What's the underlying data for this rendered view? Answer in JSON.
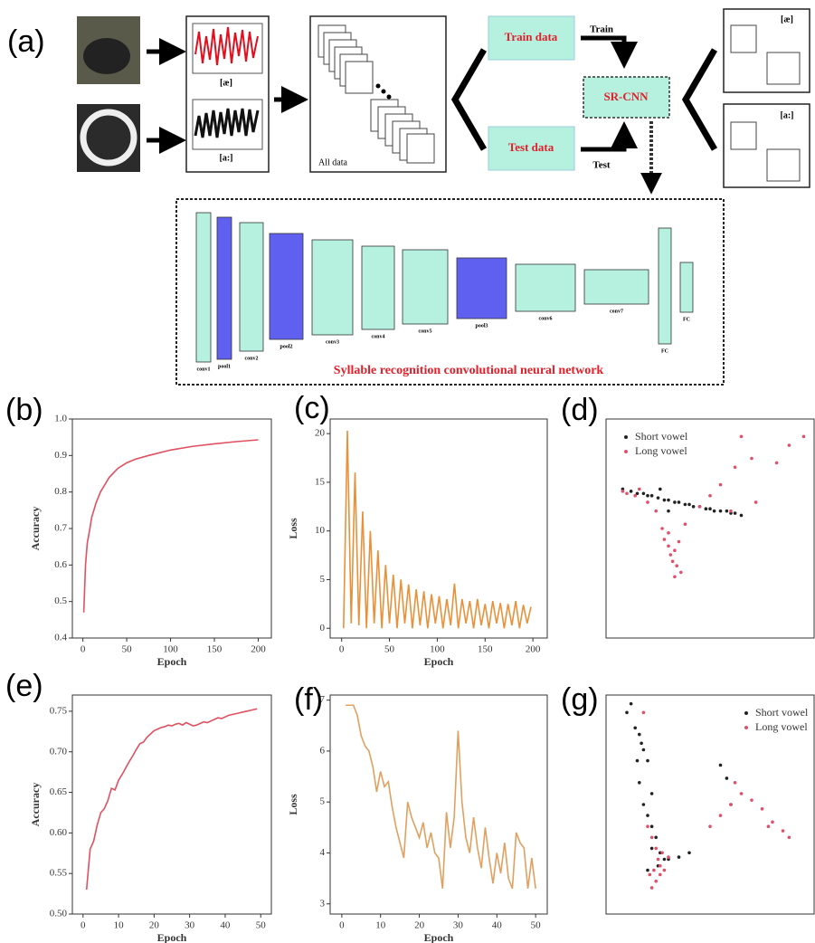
{
  "panel_labels": [
    "(a)",
    "(b)",
    "(c)",
    "(d)",
    "(e)",
    "(f)",
    "(g)"
  ],
  "diagram": {
    "waveforms": [
      "[æ]",
      "[a:]"
    ],
    "all_data": "All data",
    "train_data": "Train data",
    "test_data": "Test data",
    "train": "Train",
    "test": "Test",
    "model": "SR-CNN",
    "outputs": [
      "[æ]",
      "[a:]"
    ],
    "layers": [
      "conv1",
      "pool1",
      "conv2",
      "pool2",
      "conv3",
      "conv4",
      "conv5",
      "pool3",
      "conv6",
      "conv7",
      "FC",
      "FC"
    ],
    "network_title": "Syllable recognition convolutional neural network"
  },
  "chart_data": [
    {
      "type": "line",
      "xlabel": "Epoch",
      "ylabel": "Accuracy",
      "color": "#e05060",
      "x": [
        1,
        3,
        5,
        8,
        10,
        15,
        20,
        25,
        30,
        40,
        50,
        60,
        75,
        100,
        125,
        150,
        175,
        200
      ],
      "values": [
        0.47,
        0.6,
        0.66,
        0.7,
        0.73,
        0.77,
        0.8,
        0.82,
        0.84,
        0.865,
        0.88,
        0.89,
        0.9,
        0.915,
        0.925,
        0.932,
        0.938,
        0.943
      ],
      "xlim": [
        -12,
        215
      ],
      "xticks": [
        0,
        50,
        100,
        150,
        200
      ],
      "ylim": [
        0.4,
        1.0
      ],
      "yticks": [
        0.4,
        0.5,
        0.6,
        0.7,
        0.8,
        0.9,
        {
          "value": 1.0,
          "label": "1.0"
        }
      ]
    },
    {
      "type": "line",
      "xlabel": "Epoch",
      "ylabel": "Loss",
      "color": "#e8913a",
      "x": [
        2,
        6,
        10,
        14,
        18,
        22,
        26,
        30,
        34,
        38,
        42,
        46,
        50,
        54,
        58,
        62,
        66,
        70,
        74,
        78,
        82,
        86,
        90,
        94,
        98,
        102,
        106,
        110,
        114,
        118,
        122,
        126,
        130,
        134,
        138,
        142,
        146,
        150,
        154,
        158,
        162,
        166,
        170,
        174,
        178,
        182,
        186,
        190,
        194,
        198
      ],
      "values": [
        0,
        20.3,
        0.5,
        16,
        0.3,
        12,
        0,
        10,
        0.5,
        8,
        0,
        6.5,
        0.5,
        5.5,
        0,
        5,
        0.5,
        4.5,
        0,
        4,
        0.3,
        3.8,
        0,
        3.5,
        0.5,
        3.3,
        0,
        3,
        0.3,
        4.6,
        0,
        3,
        0.5,
        2.8,
        0,
        3,
        0.3,
        2.5,
        0,
        2.8,
        0.5,
        2.6,
        0,
        2.5,
        0.3,
        2.8,
        0,
        2.4,
        0.5,
        2.2
      ],
      "xlim": [
        -12,
        215
      ],
      "xticks": [
        0,
        50,
        100,
        150,
        200
      ],
      "ylim": [
        -1,
        21.5
      ],
      "yticks": [
        0,
        5,
        10,
        15,
        20
      ]
    },
    {
      "type": "scatter",
      "legend": "upper-left",
      "xlim": [
        0,
        100
      ],
      "ylim": [
        0,
        100
      ],
      "series": [
        {
          "name": "Short vowel",
          "color": "#222222",
          "x": [
            8,
            12,
            15,
            18,
            20,
            22,
            25,
            28,
            30,
            33,
            35,
            38,
            40,
            42,
            45,
            48,
            50,
            52,
            55,
            58,
            60,
            62,
            65,
            26,
            30
          ],
          "values": [
            68,
            67,
            66,
            66,
            65,
            65,
            64,
            63,
            63,
            62,
            62,
            61,
            61,
            60,
            60,
            59,
            59,
            58,
            58,
            58,
            57,
            57,
            56,
            68,
            58
          ]
        },
        {
          "name": "Long vowel",
          "color": "#e0506a",
          "x": [
            8,
            10,
            14,
            16,
            20,
            24,
            27,
            28,
            30,
            31,
            32,
            33,
            34,
            35,
            36,
            30,
            33,
            38,
            45,
            50,
            55,
            60,
            65,
            62,
            70,
            82,
            88,
            72,
            95
          ],
          "values": [
            67,
            66,
            65,
            68,
            62,
            58,
            50,
            45,
            42,
            38,
            35,
            40,
            33,
            44,
            30,
            48,
            28,
            52,
            60,
            65,
            70,
            58,
            92,
            78,
            82,
            80,
            88,
            62,
            92
          ]
        }
      ]
    },
    {
      "type": "line",
      "xlabel": "Epoch",
      "ylabel": "Accuracy",
      "color": "#e05060",
      "x": [
        1,
        2,
        3,
        4,
        5,
        6,
        7,
        8,
        9,
        10,
        11,
        12,
        13,
        14,
        15,
        16,
        17,
        18,
        19,
        20,
        21,
        22,
        23,
        24,
        25,
        26,
        27,
        28,
        29,
        30,
        31,
        32,
        33,
        34,
        35,
        36,
        37,
        38,
        39,
        40,
        41,
        42,
        43,
        44,
        45,
        46,
        47,
        48,
        49
      ],
      "values": [
        0.53,
        0.58,
        0.59,
        0.61,
        0.625,
        0.63,
        0.64,
        0.655,
        0.653,
        0.665,
        0.672,
        0.68,
        0.688,
        0.695,
        0.703,
        0.71,
        0.712,
        0.718,
        0.722,
        0.726,
        0.728,
        0.73,
        0.731,
        0.733,
        0.732,
        0.734,
        0.735,
        0.733,
        0.736,
        0.734,
        0.732,
        0.733,
        0.735,
        0.737,
        0.736,
        0.738,
        0.74,
        0.742,
        0.741,
        0.743,
        0.745,
        0.746,
        0.747,
        0.748,
        0.749,
        0.75,
        0.751,
        0.752,
        0.753
      ],
      "xlim": [
        -3,
        53
      ],
      "xticks": [
        0,
        10,
        20,
        30,
        40,
        50
      ],
      "ylim": [
        0.5,
        0.77
      ],
      "yticks": [
        {
          "value": 0.5,
          "label": "0.50"
        },
        0.55,
        {
          "value": 0.6,
          "label": "0.60"
        },
        0.65,
        {
          "value": 0.7,
          "label": "0.70"
        },
        0.75
      ]
    },
    {
      "type": "line",
      "xlabel": "Epoch",
      "ylabel": "Loss",
      "color": "#e0a060",
      "x": [
        1,
        2,
        3,
        4,
        5,
        6,
        7,
        8,
        9,
        10,
        11,
        12,
        13,
        14,
        15,
        16,
        17,
        18,
        19,
        20,
        21,
        22,
        23,
        24,
        25,
        26,
        27,
        28,
        29,
        30,
        31,
        32,
        33,
        34,
        35,
        36,
        37,
        38,
        39,
        40,
        41,
        42,
        43,
        44,
        45,
        46,
        47,
        48,
        49,
        50
      ],
      "values": [
        6.9,
        6.9,
        6.9,
        6.7,
        6.3,
        6.1,
        6.0,
        5.7,
        5.2,
        5.6,
        5.3,
        5.4,
        4.9,
        4.5,
        4.2,
        3.9,
        5.0,
        4.7,
        4.5,
        4.3,
        4.6,
        4.1,
        4.4,
        4.0,
        3.9,
        3.3,
        4.8,
        4.1,
        4.7,
        6.4,
        5.0,
        4.3,
        4.0,
        4.7,
        4.1,
        3.7,
        4.5,
        3.9,
        3.4,
        4.0,
        3.6,
        4.2,
        3.5,
        3.3,
        4.4,
        4.2,
        4.1,
        3.3,
        3.9,
        3.3
      ],
      "xlim": [
        -3,
        53
      ],
      "xticks": [
        0,
        10,
        20,
        30,
        40,
        50
      ],
      "ylim": [
        2.8,
        7.1
      ],
      "yticks": [
        3,
        4,
        5,
        6,
        7
      ]
    },
    {
      "type": "scatter",
      "legend": "upper-right",
      "xlim": [
        0,
        100
      ],
      "ylim": [
        0,
        100
      ],
      "series": [
        {
          "name": "Short vowel",
          "color": "#222222",
          "x": [
            10,
            12,
            14,
            16,
            15,
            18,
            17,
            20,
            16,
            22,
            18,
            20,
            22,
            24,
            26,
            28,
            30,
            35,
            40,
            55,
            58,
            60,
            22,
            20,
            25
          ],
          "values": [
            92,
            96,
            85,
            82,
            70,
            75,
            78,
            70,
            60,
            55,
            50,
            45,
            40,
            35,
            28,
            25,
            25,
            26,
            28,
            68,
            62,
            50,
            30,
            20,
            22
          ]
        },
        {
          "name": "Long vowel",
          "color": "#e0506a",
          "x": [
            18,
            20,
            22,
            24,
            25,
            26,
            23,
            21,
            27,
            30,
            22,
            24,
            55,
            60,
            65,
            70,
            75,
            78,
            80,
            85,
            88,
            62,
            50,
            28,
            26
          ],
          "values": [
            92,
            40,
            35,
            30,
            25,
            22,
            20,
            18,
            28,
            26,
            12,
            15,
            45,
            50,
            55,
            52,
            48,
            40,
            42,
            38,
            35,
            60,
            40,
            20,
            18
          ]
        }
      ]
    }
  ]
}
